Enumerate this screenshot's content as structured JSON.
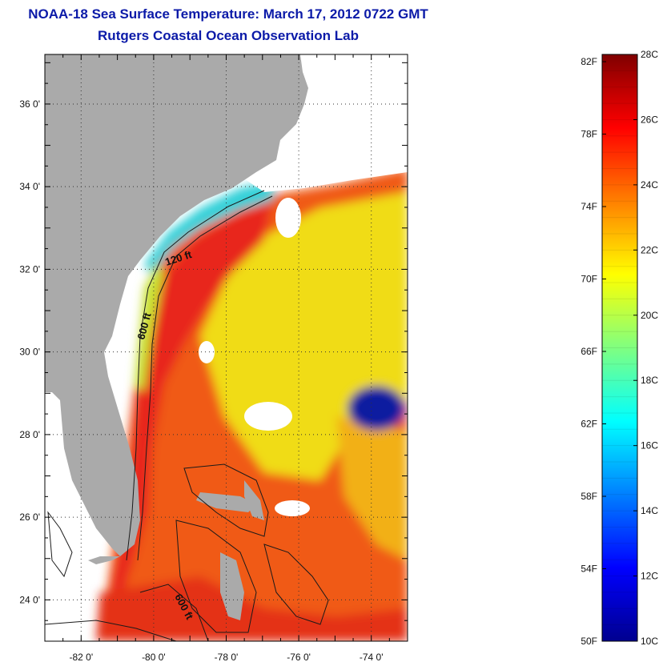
{
  "header": {
    "title": "NOAA-18 Sea Surface Temperature:  March 17, 2012 0722 GMT",
    "subtitle": "Rutgers Coastal Ocean Observation Lab"
  },
  "map": {
    "lat_range": [
      23,
      37.2
    ],
    "lon_range": [
      -83,
      -73
    ],
    "lat_ticks": [
      {
        "value": 24,
        "label": "24 0'"
      },
      {
        "value": 26,
        "label": "26 0'"
      },
      {
        "value": 28,
        "label": "28 0'"
      },
      {
        "value": 30,
        "label": "30 0'"
      },
      {
        "value": 32,
        "label": "32 0'"
      },
      {
        "value": 34,
        "label": "34 0'"
      },
      {
        "value": 36,
        "label": "36 0'"
      }
    ],
    "lon_ticks": [
      {
        "value": -82,
        "label": "-82 0'"
      },
      {
        "value": -80,
        "label": "-80 0'"
      },
      {
        "value": -78,
        "label": "-78 0'"
      },
      {
        "value": -76,
        "label": "-76 0'"
      },
      {
        "value": -74,
        "label": "-74 0'"
      }
    ],
    "contour_labels": {
      "shelf_120": "120 ft",
      "shelf_600_north": "600 ft",
      "shelf_600_south": "600 ft"
    },
    "colors": {
      "land": "#aaaaaa",
      "cloud": "#ffffff",
      "ocean_warm": "#f05a14",
      "gulf_stream": "#e8281a",
      "sargasso": "#f0dc14",
      "coastal_cold": "#20c8e8",
      "cold_patch": "#0a1aa0"
    }
  },
  "colorbar": {
    "min_c": 10,
    "max_c": 28,
    "fahrenheit_labels": [
      {
        "value_f": 82,
        "label": "82F"
      },
      {
        "value_f": 78,
        "label": "78F"
      },
      {
        "value_f": 74,
        "label": "74F"
      },
      {
        "value_f": 70,
        "label": "70F"
      },
      {
        "value_f": 66,
        "label": "66F"
      },
      {
        "value_f": 62,
        "label": "62F"
      },
      {
        "value_f": 58,
        "label": "58F"
      },
      {
        "value_f": 54,
        "label": "54F"
      },
      {
        "value_f": 50,
        "label": "50F"
      }
    ],
    "celsius_labels": [
      {
        "value_c": 28,
        "label": "28C"
      },
      {
        "value_c": 26,
        "label": "26C"
      },
      {
        "value_c": 24,
        "label": "24C"
      },
      {
        "value_c": 22,
        "label": "22C"
      },
      {
        "value_c": 20,
        "label": "20C"
      },
      {
        "value_c": 18,
        "label": "18C"
      },
      {
        "value_c": 16,
        "label": "16C"
      },
      {
        "value_c": 14,
        "label": "14C"
      },
      {
        "value_c": 12,
        "label": "12C"
      },
      {
        "value_c": 10,
        "label": "10C"
      }
    ]
  }
}
